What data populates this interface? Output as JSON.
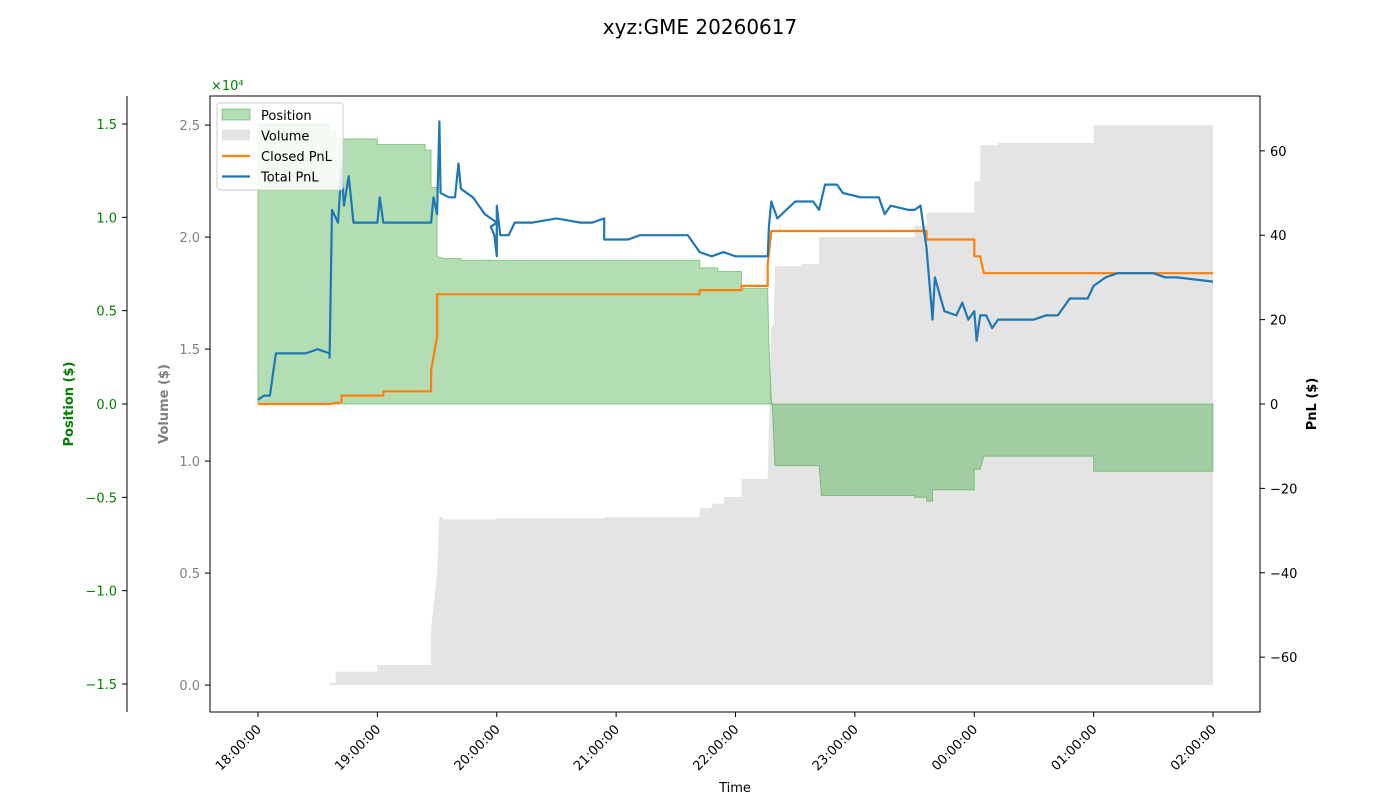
{
  "chart_data": {
    "type": "area",
    "title": "xyz:GME 20260617",
    "xlabel": "Time",
    "x_ticks": [
      "18:00:00",
      "19:00:00",
      "20:00:00",
      "21:00:00",
      "22:00:00",
      "23:00:00",
      "00:00:00",
      "01:00:00",
      "02:00:00"
    ],
    "axes": {
      "position": {
        "label": "Position ($)",
        "multiplier": "×10⁴",
        "ylim": [
          -1.65,
          1.65
        ],
        "ticks": [
          -1.5,
          -1.0,
          -0.5,
          0.0,
          0.5,
          1.0,
          1.5
        ],
        "tick_labels": [
          "−1.5",
          "−1.0",
          "−0.5",
          "0.0",
          "0.5",
          "1.0",
          "1.5"
        ],
        "color": "#008000"
      },
      "volume": {
        "label": "Volume ($)",
        "ylim": [
          -0.12,
          2.63
        ],
        "ticks": [
          0.0,
          0.5,
          1.0,
          1.5,
          2.0,
          2.5
        ],
        "tick_labels": [
          "0.0",
          "0.5",
          "1.0",
          "1.5",
          "2.0",
          "2.5"
        ],
        "color": "#808080"
      },
      "pnl": {
        "label": "PnL ($)",
        "ylim": [
          -73,
          73
        ],
        "ticks": [
          -60,
          -40,
          -20,
          0,
          20,
          40,
          60
        ],
        "tick_labels": [
          "−60",
          "−40",
          "−20",
          "0",
          "20",
          "40",
          "60"
        ],
        "color": "#000000"
      }
    },
    "legend": {
      "placement": "top-left"
    },
    "series": [
      {
        "name": "Position",
        "kind": "area",
        "axis": "position",
        "color": "#2ca02c",
        "points": [
          [
            0,
            0
          ],
          [
            0,
            1.5
          ],
          [
            0.6,
            1.5
          ],
          [
            0.6,
            1.46
          ],
          [
            0.65,
            1.46
          ],
          [
            0.65,
            1.42
          ],
          [
            1.0,
            1.42
          ],
          [
            1.0,
            1.39
          ],
          [
            1.4,
            1.39
          ],
          [
            1.4,
            1.36
          ],
          [
            1.45,
            1.36
          ],
          [
            1.45,
            1.16
          ],
          [
            1.5,
            1.16
          ],
          [
            1.5,
            0.79
          ],
          [
            1.55,
            0.78
          ],
          [
            1.7,
            0.78
          ],
          [
            1.7,
            0.77
          ],
          [
            3.7,
            0.77
          ],
          [
            3.7,
            0.73
          ],
          [
            3.85,
            0.73
          ],
          [
            3.85,
            0.71
          ],
          [
            4.05,
            0.71
          ],
          [
            4.05,
            0.62
          ],
          [
            4.27,
            0.62
          ],
          [
            4.28,
            0.33
          ],
          [
            4.3,
            0.03
          ],
          [
            4.31,
            -0.03
          ],
          [
            4.33,
            -0.33
          ],
          [
            4.7,
            -0.33
          ],
          [
            4.72,
            -0.49
          ],
          [
            5.5,
            -0.49
          ],
          [
            5.5,
            -0.5
          ],
          [
            5.6,
            -0.5
          ],
          [
            5.6,
            -0.52
          ],
          [
            5.65,
            -0.52
          ],
          [
            5.65,
            -0.46
          ],
          [
            6.0,
            -0.46
          ],
          [
            6.0,
            -0.35
          ],
          [
            6.05,
            -0.35
          ],
          [
            6.08,
            -0.28
          ],
          [
            6.1,
            -0.28
          ],
          [
            7.0,
            -0.28
          ],
          [
            7.0,
            -0.36
          ],
          [
            8.0,
            -0.36
          ],
          [
            8.0,
            0
          ]
        ]
      },
      {
        "name": "Volume",
        "kind": "area",
        "axis": "volume",
        "color": "#bbbbbb",
        "points": [
          [
            0,
            0
          ],
          [
            0,
            0.0
          ],
          [
            0.6,
            0.0
          ],
          [
            0.6,
            0.01
          ],
          [
            0.65,
            0.01
          ],
          [
            0.65,
            0.06
          ],
          [
            1.0,
            0.06
          ],
          [
            1.0,
            0.09
          ],
          [
            1.45,
            0.09
          ],
          [
            1.45,
            0.25
          ],
          [
            1.5,
            0.5
          ],
          [
            1.52,
            0.75
          ],
          [
            1.55,
            0.75
          ],
          [
            1.55,
            0.74
          ],
          [
            2.0,
            0.74
          ],
          [
            2.0,
            0.745
          ],
          [
            2.9,
            0.745
          ],
          [
            2.9,
            0.75
          ],
          [
            3.7,
            0.75
          ],
          [
            3.7,
            0.79
          ],
          [
            3.8,
            0.79
          ],
          [
            3.8,
            0.81
          ],
          [
            3.9,
            0.81
          ],
          [
            3.9,
            0.84
          ],
          [
            4.05,
            0.84
          ],
          [
            4.05,
            0.92
          ],
          [
            4.27,
            0.92
          ],
          [
            4.3,
            1.6
          ],
          [
            4.32,
            1.61
          ],
          [
            4.33,
            1.87
          ],
          [
            4.55,
            1.87
          ],
          [
            4.55,
            1.88
          ],
          [
            4.7,
            1.88
          ],
          [
            4.7,
            2.0
          ],
          [
            5.5,
            2.0
          ],
          [
            5.5,
            2.05
          ],
          [
            5.6,
            2.05
          ],
          [
            5.6,
            2.11
          ],
          [
            6.0,
            2.11
          ],
          [
            6.0,
            2.25
          ],
          [
            6.05,
            2.25
          ],
          [
            6.05,
            2.41
          ],
          [
            6.2,
            2.41
          ],
          [
            6.2,
            2.42
          ],
          [
            7.0,
            2.42
          ],
          [
            7.0,
            2.5
          ],
          [
            8.0,
            2.5
          ],
          [
            8.0,
            0
          ]
        ]
      },
      {
        "name": "Closed PnL",
        "kind": "line",
        "axis": "pnl",
        "color": "#ff7f0e",
        "points": [
          [
            0,
            0
          ],
          [
            0.6,
            0
          ],
          [
            0.7,
            0.5
          ],
          [
            0.7,
            2
          ],
          [
            1.05,
            2
          ],
          [
            1.05,
            3
          ],
          [
            1.45,
            3
          ],
          [
            1.45,
            8
          ],
          [
            1.5,
            16
          ],
          [
            1.5,
            26
          ],
          [
            3.7,
            26
          ],
          [
            3.7,
            27
          ],
          [
            4.05,
            27
          ],
          [
            4.05,
            28
          ],
          [
            4.27,
            28
          ],
          [
            4.27,
            33
          ],
          [
            4.3,
            41
          ],
          [
            5.6,
            41
          ],
          [
            5.6,
            39
          ],
          [
            6.0,
            39
          ],
          [
            6.0,
            35
          ],
          [
            6.05,
            35
          ],
          [
            6.08,
            31
          ],
          [
            8.0,
            31
          ]
        ]
      },
      {
        "name": "Total PnL",
        "kind": "line",
        "axis": "pnl",
        "color": "#1f77b4",
        "points": [
          [
            0,
            1
          ],
          [
            0.05,
            2
          ],
          [
            0.1,
            2
          ],
          [
            0.15,
            12
          ],
          [
            0.4,
            12
          ],
          [
            0.5,
            13
          ],
          [
            0.6,
            12
          ],
          [
            0.6,
            11
          ],
          [
            0.6,
            11
          ],
          [
            0.62,
            46
          ],
          [
            0.67,
            43
          ],
          [
            0.7,
            56
          ],
          [
            0.72,
            47
          ],
          [
            0.76,
            54
          ],
          [
            0.8,
            43
          ],
          [
            0.85,
            43
          ],
          [
            1.0,
            43
          ],
          [
            1.02,
            49
          ],
          [
            1.05,
            43
          ],
          [
            1.45,
            43
          ],
          [
            1.47,
            49
          ],
          [
            1.5,
            45
          ],
          [
            1.52,
            67
          ],
          [
            1.53,
            50
          ],
          [
            1.6,
            49
          ],
          [
            1.65,
            49
          ],
          [
            1.68,
            57
          ],
          [
            1.7,
            51
          ],
          [
            1.8,
            49
          ],
          [
            1.9,
            45
          ],
          [
            2.0,
            43
          ],
          [
            1.95,
            42
          ],
          [
            1.98,
            40
          ],
          [
            2.0,
            35
          ],
          [
            2.0,
            47
          ],
          [
            2.03,
            40
          ],
          [
            2.1,
            40
          ],
          [
            2.15,
            43
          ],
          [
            2.3,
            43
          ],
          [
            2.5,
            44
          ],
          [
            2.7,
            43
          ],
          [
            2.8,
            43
          ],
          [
            2.9,
            44
          ],
          [
            2.9,
            39
          ],
          [
            3.1,
            39
          ],
          [
            3.2,
            40
          ],
          [
            3.6,
            40
          ],
          [
            3.7,
            36
          ],
          [
            3.8,
            35
          ],
          [
            3.9,
            36
          ],
          [
            4.0,
            35
          ],
          [
            4.27,
            35
          ],
          [
            4.28,
            42
          ],
          [
            4.3,
            48
          ],
          [
            4.35,
            44
          ],
          [
            4.5,
            48
          ],
          [
            4.65,
            48
          ],
          [
            4.7,
            46
          ],
          [
            4.75,
            52
          ],
          [
            4.85,
            52
          ],
          [
            4.9,
            50
          ],
          [
            5.05,
            49
          ],
          [
            5.2,
            49
          ],
          [
            5.25,
            45
          ],
          [
            5.3,
            47
          ],
          [
            5.45,
            46
          ],
          [
            5.5,
            46
          ],
          [
            5.55,
            47
          ],
          [
            5.6,
            37
          ],
          [
            5.65,
            20
          ],
          [
            5.67,
            30
          ],
          [
            5.7,
            27
          ],
          [
            5.75,
            22
          ],
          [
            5.85,
            21
          ],
          [
            5.9,
            24
          ],
          [
            5.95,
            20
          ],
          [
            6.0,
            22
          ],
          [
            6.02,
            15
          ],
          [
            6.05,
            21
          ],
          [
            6.1,
            21
          ],
          [
            6.15,
            18
          ],
          [
            6.2,
            20
          ],
          [
            6.5,
            20
          ],
          [
            6.6,
            21
          ],
          [
            6.7,
            21
          ],
          [
            6.8,
            25
          ],
          [
            6.95,
            25
          ],
          [
            7.0,
            28
          ],
          [
            7.1,
            30
          ],
          [
            7.2,
            31
          ],
          [
            7.3,
            31
          ],
          [
            7.5,
            31
          ],
          [
            7.6,
            30
          ],
          [
            7.7,
            30
          ],
          [
            8.0,
            29
          ]
        ]
      }
    ]
  }
}
